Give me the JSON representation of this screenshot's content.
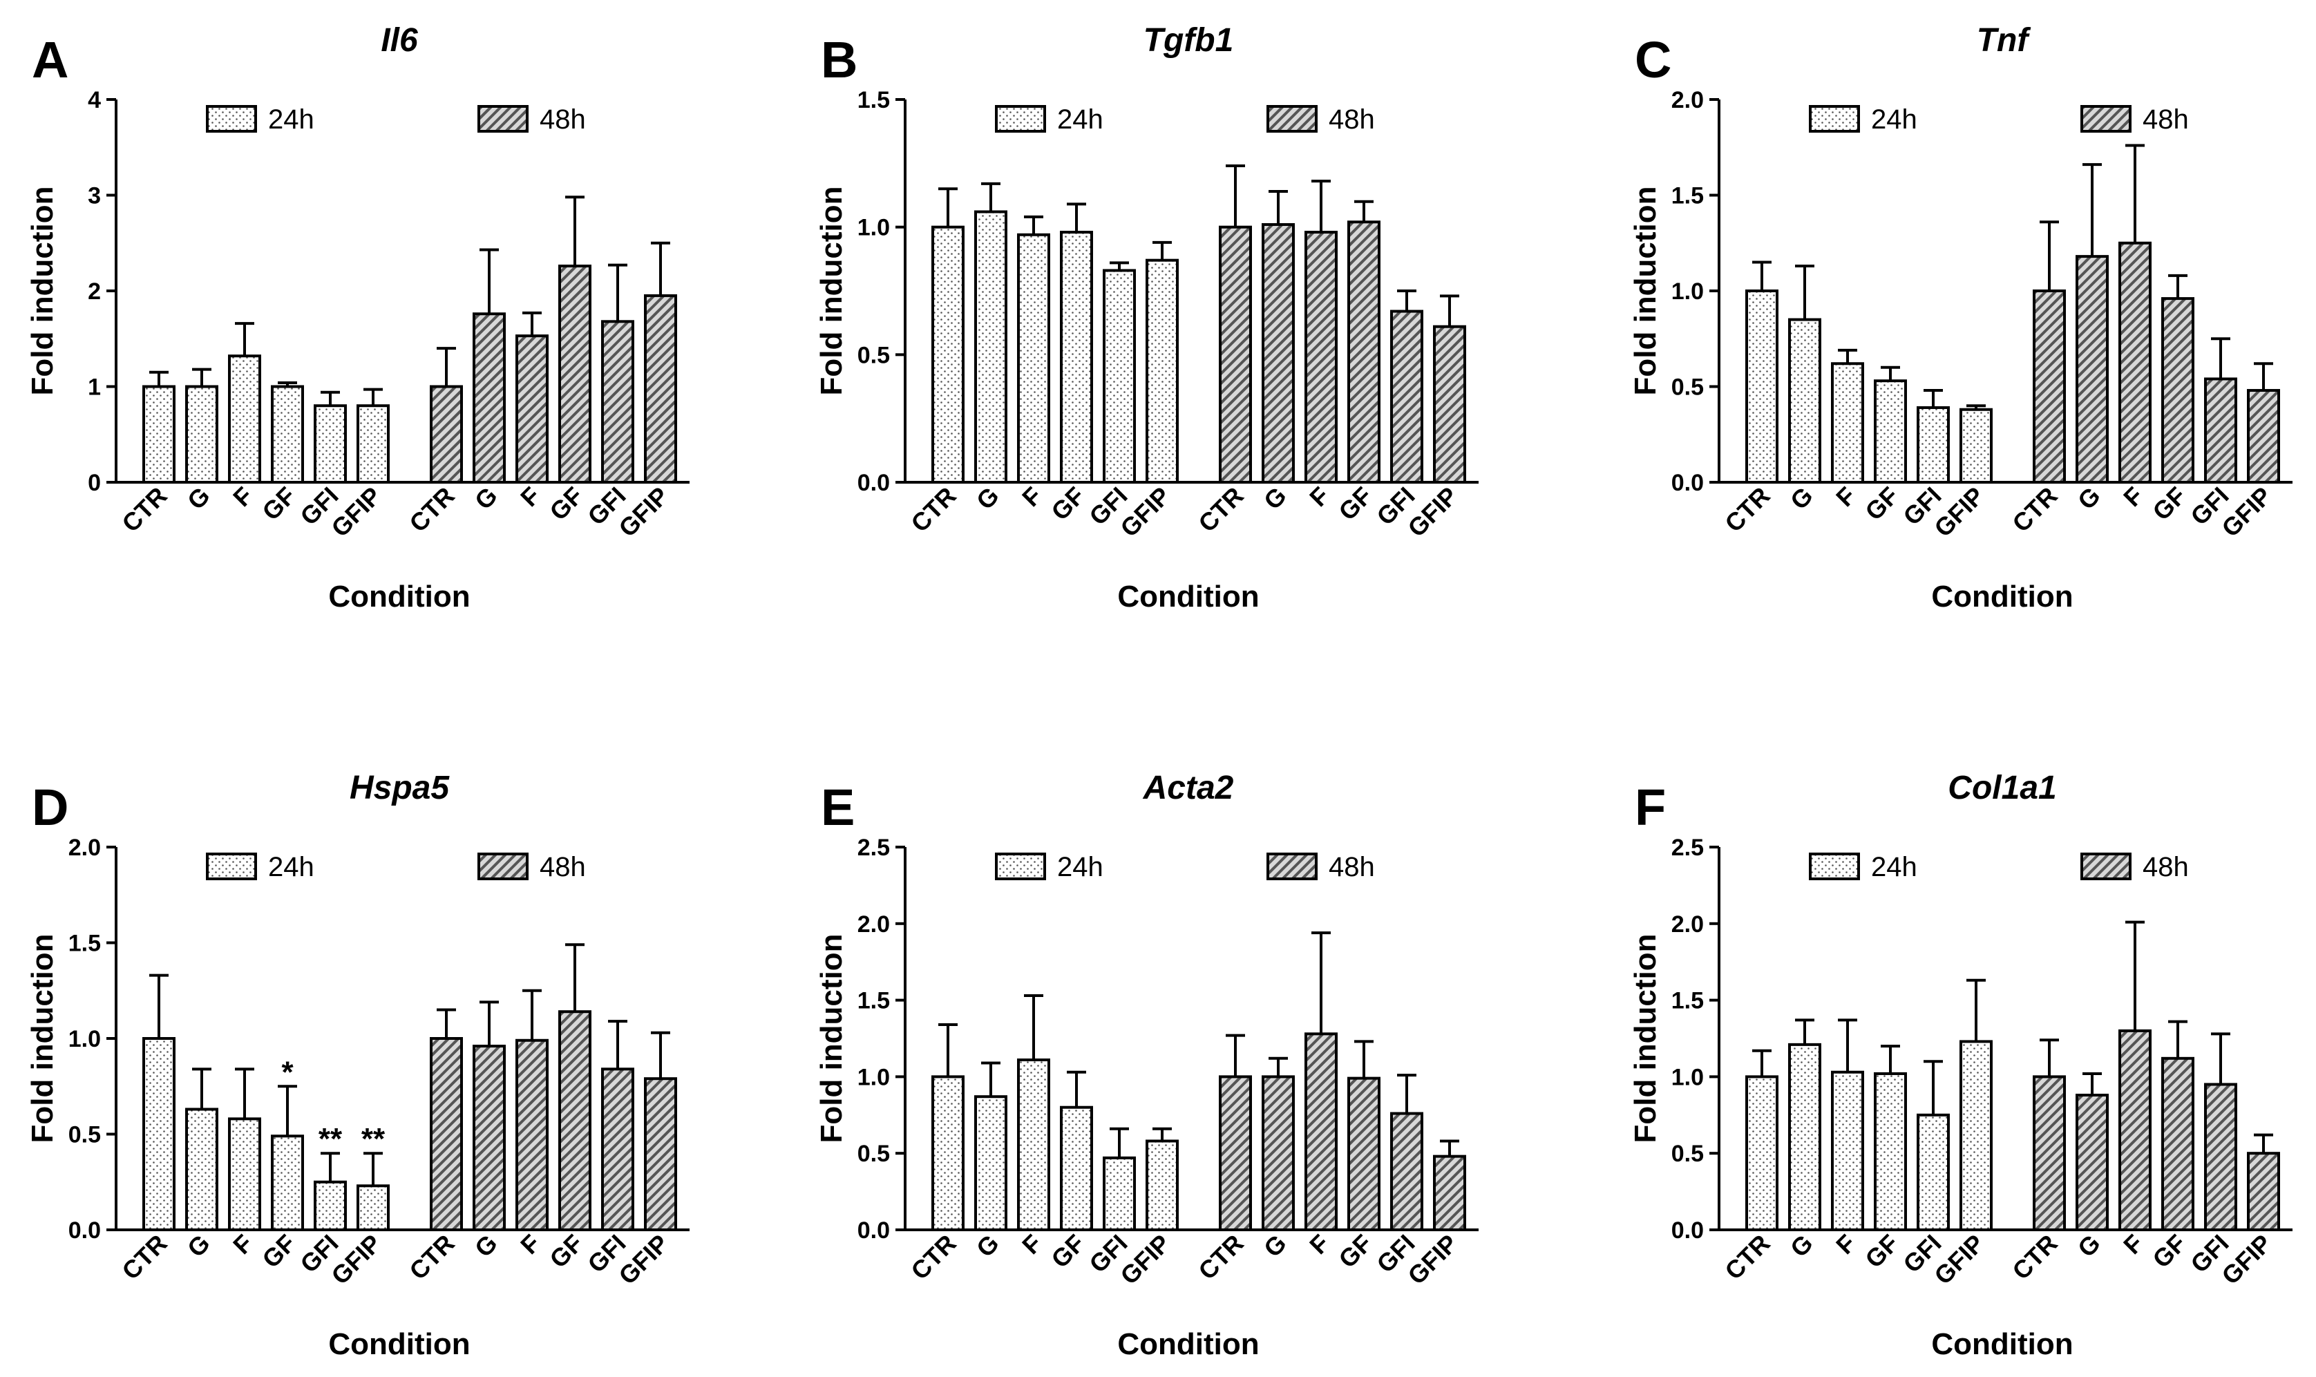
{
  "figure": {
    "panels_count": 6
  },
  "chart_data": [
    {
      "panel": "A",
      "type": "bar",
      "title": "Il6",
      "xlabel": "Condition",
      "ylabel": "Fold induction",
      "ylim": [
        0,
        4
      ],
      "yticks": [
        "0",
        "1",
        "2",
        "3",
        "4"
      ],
      "categories": [
        "CTR",
        "G",
        "F",
        "GF",
        "GFI",
        "GFIP"
      ],
      "series": [
        {
          "name": "24h",
          "pattern": "dots",
          "values": [
            1.0,
            1.0,
            1.32,
            1.0,
            0.8,
            0.8
          ],
          "errors": [
            0.15,
            0.18,
            0.34,
            0.04,
            0.14,
            0.17
          ],
          "sig": [
            "",
            "",
            "",
            "",
            "",
            ""
          ]
        },
        {
          "name": "48h",
          "pattern": "hatch",
          "values": [
            1.0,
            1.76,
            1.53,
            2.26,
            1.68,
            1.95
          ],
          "errors": [
            0.4,
            0.67,
            0.24,
            0.72,
            0.59,
            0.55
          ],
          "sig": [
            "",
            "",
            "",
            "",
            "",
            ""
          ]
        }
      ]
    },
    {
      "panel": "B",
      "type": "bar",
      "title": "Tgfb1",
      "xlabel": "Condition",
      "ylabel": "Fold induction",
      "ylim": [
        0,
        1.5
      ],
      "yticks": [
        "0.0",
        "0.5",
        "1.0",
        "1.5"
      ],
      "categories": [
        "CTR",
        "G",
        "F",
        "GF",
        "GFI",
        "GFIP"
      ],
      "series": [
        {
          "name": "24h",
          "pattern": "dots",
          "values": [
            1.0,
            1.06,
            0.97,
            0.98,
            0.83,
            0.87
          ],
          "errors": [
            0.15,
            0.11,
            0.07,
            0.11,
            0.03,
            0.07
          ],
          "sig": [
            "",
            "",
            "",
            "",
            "",
            ""
          ]
        },
        {
          "name": "48h",
          "pattern": "hatch",
          "values": [
            1.0,
            1.01,
            0.98,
            1.02,
            0.67,
            0.61
          ],
          "errors": [
            0.24,
            0.13,
            0.2,
            0.08,
            0.08,
            0.12
          ],
          "sig": [
            "",
            "",
            "",
            "",
            "",
            ""
          ]
        }
      ]
    },
    {
      "panel": "C",
      "type": "bar",
      "title": "Tnf",
      "xlabel": "Condition",
      "ylabel": "Fold induction",
      "ylim": [
        0,
        2
      ],
      "yticks": [
        "0.0",
        "0.5",
        "1.0",
        "1.5",
        "2.0"
      ],
      "categories": [
        "CTR",
        "G",
        "F",
        "GF",
        "GFI",
        "GFIP"
      ],
      "series": [
        {
          "name": "24h",
          "pattern": "dots",
          "values": [
            1.0,
            0.85,
            0.62,
            0.53,
            0.39,
            0.38
          ],
          "errors": [
            0.15,
            0.28,
            0.07,
            0.07,
            0.09,
            0.02
          ],
          "sig": [
            "",
            "",
            "",
            "",
            "",
            ""
          ]
        },
        {
          "name": "48h",
          "pattern": "hatch",
          "values": [
            1.0,
            1.18,
            1.25,
            0.96,
            0.54,
            0.48
          ],
          "errors": [
            0.36,
            0.48,
            0.51,
            0.12,
            0.21,
            0.14
          ],
          "sig": [
            "",
            "",
            "",
            "",
            "",
            ""
          ]
        }
      ]
    },
    {
      "panel": "D",
      "type": "bar",
      "title": "Hspa5",
      "xlabel": "Condition",
      "ylabel": "Fold induction",
      "ylim": [
        0,
        2
      ],
      "yticks": [
        "0.0",
        "0.5",
        "1.0",
        "1.5",
        "2.0"
      ],
      "categories": [
        "CTR",
        "G",
        "F",
        "GF",
        "GFI",
        "GFIP"
      ],
      "series": [
        {
          "name": "24h",
          "pattern": "dots",
          "values": [
            1.0,
            0.63,
            0.58,
            0.49,
            0.25,
            0.23
          ],
          "errors": [
            0.33,
            0.21,
            0.26,
            0.26,
            0.15,
            0.17
          ],
          "sig": [
            "",
            "",
            "",
            "*",
            "**",
            "**"
          ]
        },
        {
          "name": "48h",
          "pattern": "hatch",
          "values": [
            1.0,
            0.96,
            0.99,
            1.14,
            0.84,
            0.79
          ],
          "errors": [
            0.15,
            0.23,
            0.26,
            0.35,
            0.25,
            0.24
          ],
          "sig": [
            "",
            "",
            "",
            "",
            "",
            ""
          ]
        }
      ]
    },
    {
      "panel": "E",
      "type": "bar",
      "title": "Acta2",
      "xlabel": "Condition",
      "ylabel": "Fold induction",
      "ylim": [
        0,
        2.5
      ],
      "yticks": [
        "0.0",
        "0.5",
        "1.0",
        "1.5",
        "2.0",
        "2.5"
      ],
      "categories": [
        "CTR",
        "G",
        "F",
        "GF",
        "GFI",
        "GFIP"
      ],
      "series": [
        {
          "name": "24h",
          "pattern": "dots",
          "values": [
            1.0,
            0.87,
            1.11,
            0.8,
            0.47,
            0.58
          ],
          "errors": [
            0.34,
            0.22,
            0.42,
            0.23,
            0.19,
            0.08
          ],
          "sig": [
            "",
            "",
            "",
            "",
            "",
            ""
          ]
        },
        {
          "name": "48h",
          "pattern": "hatch",
          "values": [
            1.0,
            1.0,
            1.28,
            0.99,
            0.76,
            0.48
          ],
          "errors": [
            0.27,
            0.12,
            0.66,
            0.24,
            0.25,
            0.1
          ],
          "sig": [
            "",
            "",
            "",
            "",
            "",
            ""
          ]
        }
      ]
    },
    {
      "panel": "F",
      "type": "bar",
      "title": "Col1a1",
      "xlabel": "Condition",
      "ylabel": "Fold induction",
      "ylim": [
        0,
        2.5
      ],
      "yticks": [
        "0.0",
        "0.5",
        "1.0",
        "1.5",
        "2.0",
        "2.5"
      ],
      "categories": [
        "CTR",
        "G",
        "F",
        "GF",
        "GFI",
        "GFIP"
      ],
      "series": [
        {
          "name": "24h",
          "pattern": "dots",
          "values": [
            1.0,
            1.21,
            1.03,
            1.02,
            0.75,
            1.23
          ],
          "errors": [
            0.17,
            0.16,
            0.34,
            0.18,
            0.35,
            0.4
          ],
          "sig": [
            "",
            "",
            "",
            "",
            "",
            ""
          ]
        },
        {
          "name": "48h",
          "pattern": "hatch",
          "values": [
            1.0,
            0.88,
            1.3,
            1.12,
            0.95,
            0.5
          ],
          "errors": [
            0.24,
            0.14,
            0.71,
            0.24,
            0.33,
            0.12
          ],
          "sig": [
            "",
            "",
            "",
            "",
            "",
            ""
          ]
        }
      ]
    }
  ]
}
